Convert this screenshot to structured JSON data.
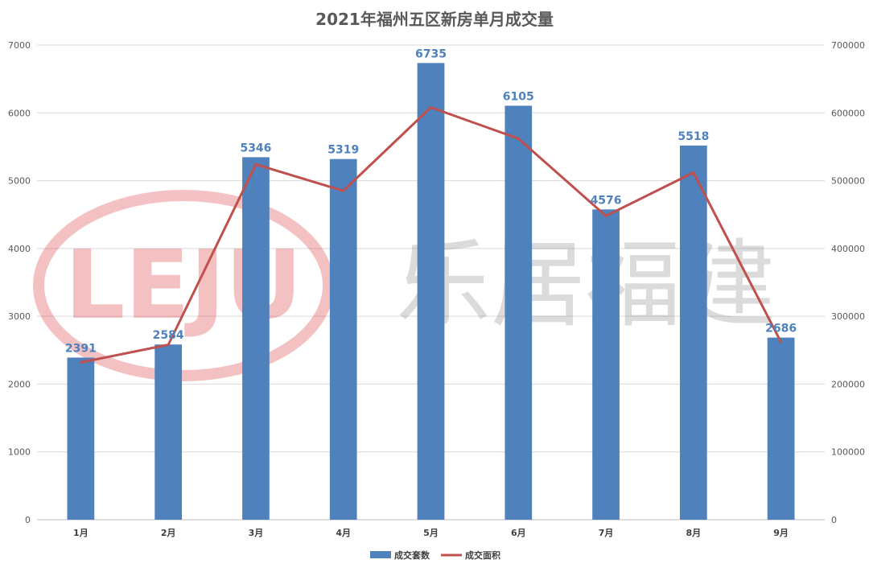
{
  "chart_data": {
    "type": "bar",
    "title": "2021年福州五区新房单月成交量",
    "categories": [
      "1月",
      "2月",
      "3月",
      "4月",
      "5月",
      "6月",
      "7月",
      "8月",
      "9月"
    ],
    "series": [
      {
        "name": "成交套数",
        "type": "bar",
        "axis": "left",
        "color": "#4f81bd",
        "values": [
          2391,
          2584,
          5346,
          5319,
          6735,
          6105,
          4576,
          5518,
          2686
        ],
        "data_labels": [
          "2391",
          "2584",
          "5346",
          "5319",
          "6735",
          "6105",
          "4576",
          "5518",
          "2686"
        ]
      },
      {
        "name": "成交面积",
        "type": "line",
        "axis": "right",
        "color": "#c0504d",
        "values": [
          232000,
          258000,
          524000,
          485000,
          608000,
          562000,
          448000,
          512000,
          262000
        ]
      }
    ],
    "y_left": {
      "ylim": [
        0,
        7000
      ],
      "ticks": [
        0,
        1000,
        2000,
        3000,
        4000,
        5000,
        6000,
        7000
      ],
      "tick_labels": [
        "0",
        "1000",
        "2000",
        "3000",
        "4000",
        "5000",
        "6000",
        "7000"
      ]
    },
    "y_right": {
      "ylim": [
        0,
        700000
      ],
      "ticks": [
        0,
        100000,
        200000,
        300000,
        400000,
        500000,
        600000,
        700000
      ],
      "tick_labels": [
        "0",
        "100000",
        "200000",
        "300000",
        "400000",
        "500000",
        "600000",
        "700000"
      ]
    },
    "grid": true,
    "legend_position": "bottom"
  },
  "watermark": {
    "logo_text": "LEJU",
    "brand_text": "乐居福建",
    "logo_color": "#d9232d"
  }
}
